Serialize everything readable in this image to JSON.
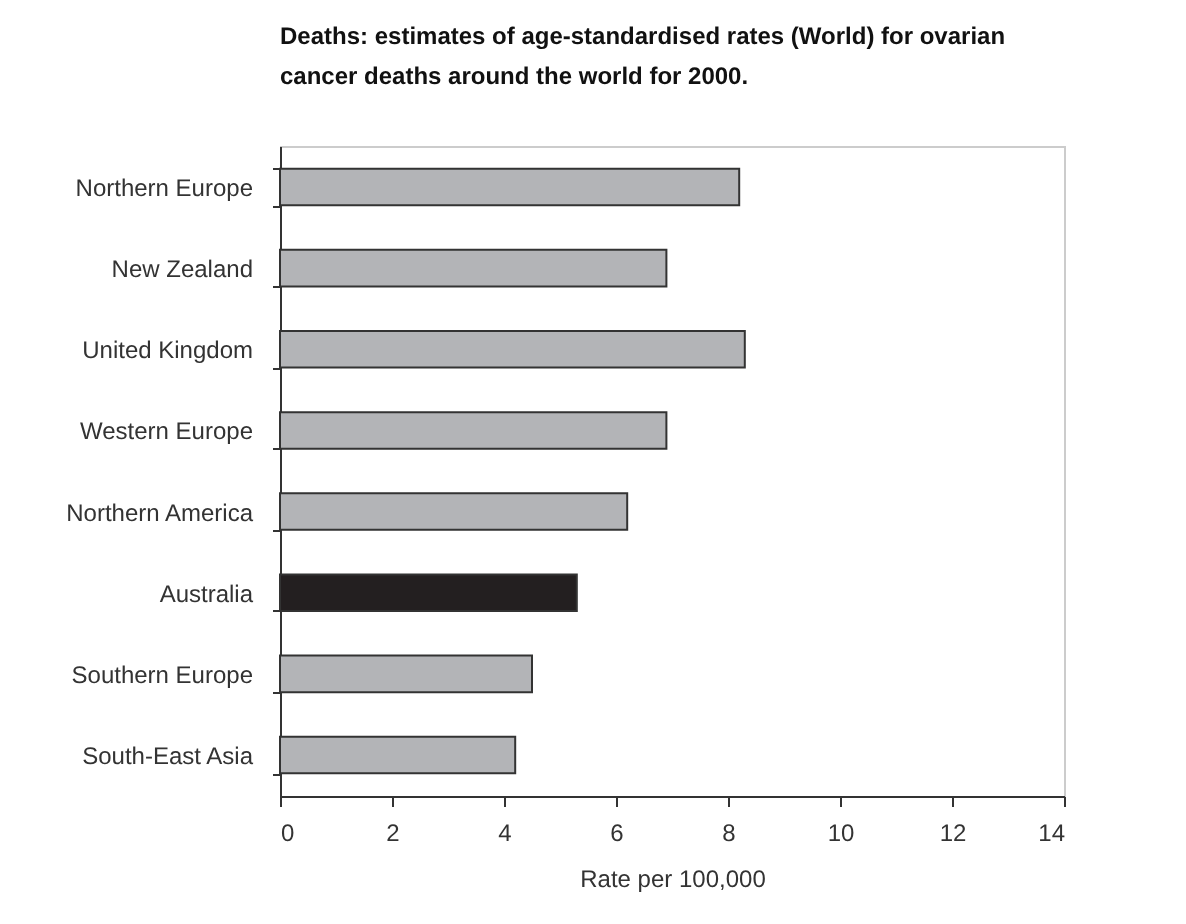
{
  "chart_data": {
    "type": "bar",
    "orientation": "horizontal",
    "title": "Deaths:  estimates of age-standardised rates (World) for ovarian cancer deaths around the world for 2000.",
    "xlabel": "Rate per 100,000",
    "categories": [
      "Northern Europe",
      "New Zealand",
      "United Kingdom",
      "Western Europe",
      "Northern America",
      "Australia",
      "Southern Europe",
      "South-East Asia"
    ],
    "values": [
      8.2,
      6.9,
      8.3,
      6.9,
      6.2,
      5.3,
      4.5,
      4.2
    ],
    "colors": [
      "#b3b4b7",
      "#b3b4b7",
      "#b3b4b7",
      "#b3b4b7",
      "#b3b4b7",
      "#231f20",
      "#b3b4b7",
      "#b3b4b7"
    ],
    "xlim": [
      0,
      14
    ],
    "xticks": [
      0,
      2,
      4,
      6,
      8,
      10,
      12,
      14
    ],
    "grid": false,
    "legend": false
  }
}
